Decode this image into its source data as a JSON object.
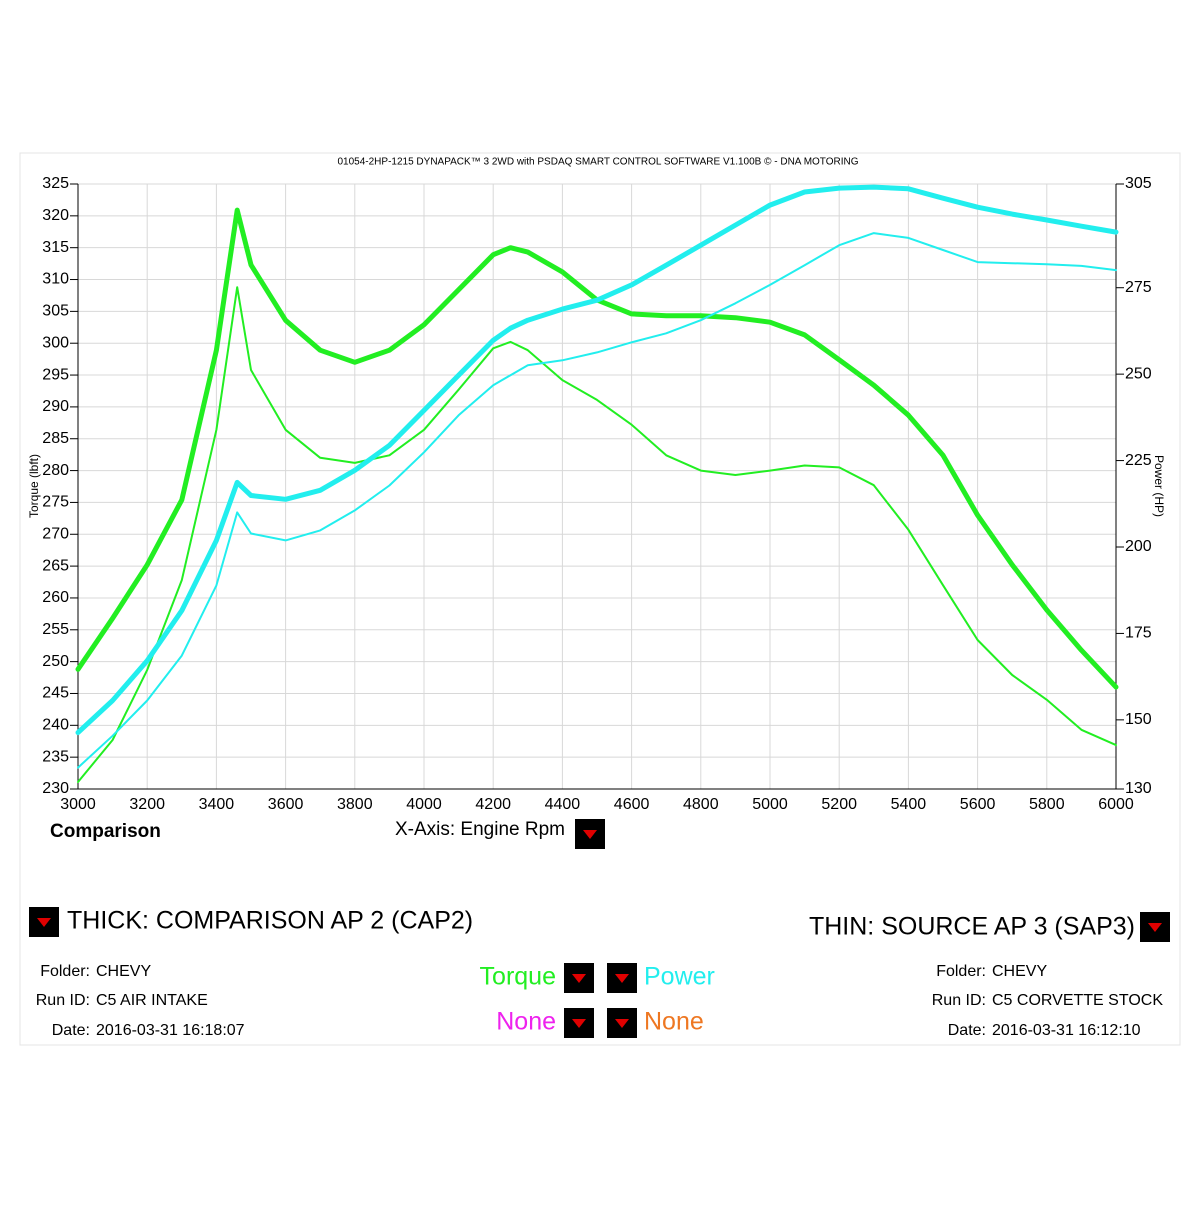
{
  "chart_data": {
    "type": "line",
    "title": "01054-2HP-1215 DYNAPACK™ 3 2WD with PSDAQ SMART CONTROL SOFTWARE V1.100B © - DNA MOTORING",
    "xlabel": "X-Axis: Engine Rpm",
    "ylabel": "Torque (lbft)",
    "y2label": "Power (HP)",
    "x": [
      3000,
      3100,
      3200,
      3300,
      3400,
      3460,
      3500,
      3600,
      3700,
      3800,
      3900,
      4000,
      4100,
      4200,
      4250,
      4300,
      4400,
      4500,
      4600,
      4700,
      4800,
      4900,
      5000,
      5100,
      5200,
      5300,
      5400,
      5500,
      5600,
      5700,
      5800,
      5900,
      6000
    ],
    "series": [
      {
        "color": "#22ee22",
        "line_width": 5,
        "values": [
          248.8,
          256.8,
          265.2,
          275.4,
          298.9,
          320.9,
          312.3,
          303.6,
          298.9,
          297.0,
          298.9,
          302.9,
          308.4,
          313.9,
          315.0,
          314.3,
          311.2,
          306.8,
          304.6,
          304.3,
          304.3,
          304.0,
          303.3,
          301.3,
          297.4,
          293.4,
          288.7,
          282.4,
          273.0,
          265.2,
          258.1,
          251.8,
          246.0
        ]
      },
      {
        "color": "#22ee22",
        "line_width": 2,
        "values": [
          231.1,
          237.7,
          248.7,
          262.8,
          286.4,
          308.8,
          295.8,
          286.4,
          282.0,
          281.2,
          282.4,
          286.4,
          292.7,
          299.2,
          300.2,
          298.9,
          294.2,
          291.1,
          287.2,
          282.4,
          280.0,
          279.3,
          280.0,
          280.8,
          280.5,
          277.7,
          270.7,
          262.0,
          253.4,
          247.9,
          244.0,
          239.3,
          236.9
        ]
      },
      {
        "color": "#22eeee",
        "line_width": 5,
        "axis": "y2",
        "values": [
          146.3,
          155.6,
          167.1,
          181.6,
          201.9,
          218.7,
          214.9,
          213.8,
          216.4,
          222.2,
          229.4,
          239.5,
          249.7,
          259.8,
          263.3,
          265.6,
          268.8,
          271.4,
          275.8,
          281.5,
          287.3,
          293.1,
          298.9,
          302.7,
          303.8,
          304.1,
          303.6,
          300.9,
          298.3,
          296.3,
          294.6,
          292.8,
          291.1
        ]
      },
      {
        "color": "#22eeee",
        "line_width": 2,
        "axis": "y2",
        "values": [
          136.2,
          145.4,
          155.6,
          168.6,
          188.9,
          210.0,
          203.9,
          201.9,
          204.8,
          210.6,
          217.8,
          227.4,
          238.1,
          246.8,
          249.7,
          252.6,
          254.0,
          256.3,
          259.2,
          261.8,
          265.6,
          270.5,
          275.8,
          281.5,
          287.3,
          290.8,
          289.4,
          285.9,
          282.4,
          282.1,
          281.8,
          281.3,
          280.1
        ]
      }
    ],
    "xlim": [
      3000,
      6000
    ],
    "xticks": [
      3000,
      3200,
      3400,
      3600,
      3800,
      4000,
      4200,
      4400,
      4600,
      4800,
      5000,
      5200,
      5400,
      5600,
      5800,
      6000
    ],
    "ylim": [
      230,
      325
    ],
    "yticks": [
      230,
      235,
      240,
      245,
      250,
      255,
      260,
      265,
      270,
      275,
      280,
      285,
      290,
      295,
      300,
      305,
      310,
      315,
      320,
      325
    ],
    "y2lim": [
      130,
      305
    ],
    "y2ticks": [
      130,
      150,
      175,
      200,
      225,
      250,
      275,
      305
    ],
    "grid": true
  },
  "panel": {
    "mode": "Comparison",
    "thick": {
      "heading": "THICK: COMPARISON AP 2 (CAP2)",
      "fields": [
        {
          "label": "Folder:",
          "value": "CHEVY"
        },
        {
          "label": "Run ID:",
          "value": "C5 AIR INTAKE"
        },
        {
          "label": "Date:",
          "value": "2016-03-31 16:18:07"
        }
      ]
    },
    "thin": {
      "heading": "THIN: SOURCE AP 3 (SAP3)",
      "fields": [
        {
          "label": "Folder:",
          "value": "CHEVY"
        },
        {
          "label": "Run ID:",
          "value": "C5 CORVETTE STOCK"
        },
        {
          "label": "Date:",
          "value": "2016-03-31 16:12:10"
        }
      ]
    },
    "selectors": [
      {
        "label": "Torque",
        "color": "#22ee22"
      },
      {
        "label": "Power",
        "color": "#22eeee"
      },
      {
        "label": "None",
        "color": "#ee22ee"
      },
      {
        "label": "None",
        "color": "#ee7722"
      }
    ]
  }
}
